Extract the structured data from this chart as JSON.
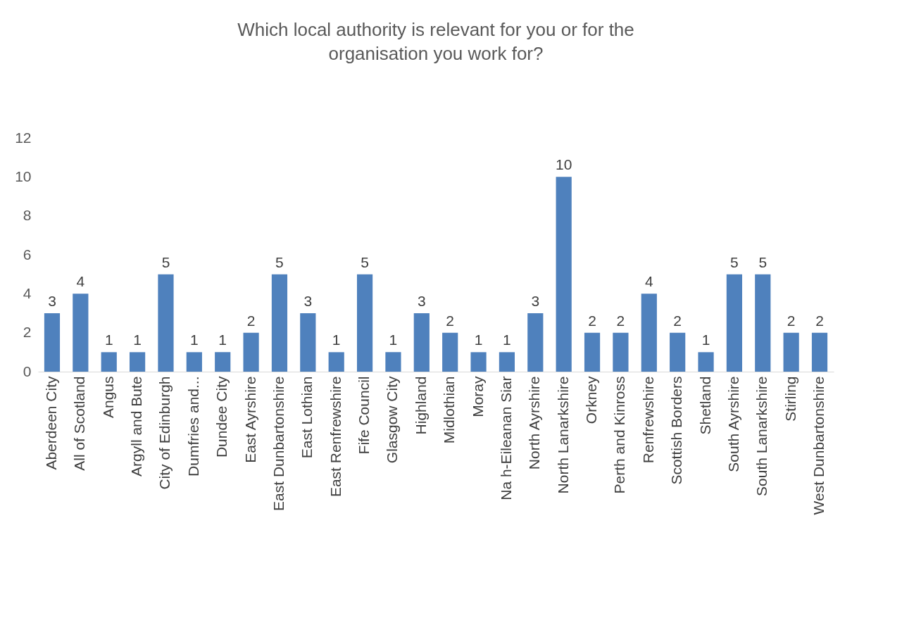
{
  "chart_data": {
    "type": "bar",
    "title": "Which local authority is relevant for you or for the organisation you work for?",
    "categories": [
      "Aberdeen City",
      "All of Scotland",
      "Angus",
      "Argyll and Bute",
      "City of Edinburgh",
      "Dumfries and...",
      "Dundee City",
      "East Ayrshire",
      "East Dunbartonshire",
      "East Lothian",
      "East Renfrewshire",
      "Fife Council",
      "Glasgow City",
      "Highland",
      "Midlothian",
      "Moray",
      "Na h-Eileanan Siar",
      "North Ayrshire",
      "North Lanarkshire",
      "Orkney",
      "Perth and Kinross",
      "Renfrewshire",
      "Scottish Borders",
      "Shetland",
      "South Ayrshire",
      "South Lanarkshire",
      "Stirling",
      "West Dunbartonshire"
    ],
    "values": [
      3,
      4,
      1,
      1,
      5,
      1,
      1,
      2,
      5,
      3,
      1,
      5,
      1,
      3,
      2,
      1,
      1,
      3,
      10,
      2,
      2,
      4,
      2,
      1,
      5,
      5,
      2,
      2
    ],
    "color": "#4f81bd",
    "ylim": [
      0,
      12
    ],
    "yticks": [
      0,
      2,
      4,
      6,
      8,
      10,
      12
    ],
    "data_labels": true,
    "grid": false
  }
}
